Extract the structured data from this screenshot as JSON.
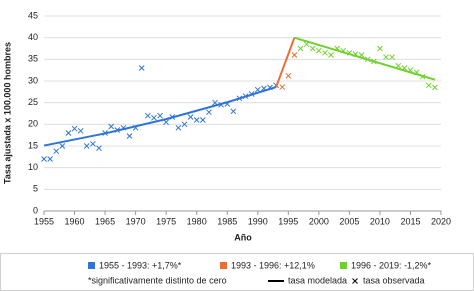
{
  "chart_data": {
    "type": "line",
    "y_label": "Tasa ajustada x 100.000 hombres",
    "x_label": "Año",
    "xlim": [
      1955,
      2020
    ],
    "xticks": [
      1955,
      1960,
      1965,
      1970,
      1975,
      1980,
      1985,
      1990,
      1995,
      2000,
      2005,
      2010,
      2015,
      2020
    ],
    "ylim": [
      0,
      45
    ],
    "yticks": [
      0,
      5,
      10,
      15,
      20,
      25,
      30,
      35,
      40,
      45
    ],
    "grid": true,
    "series": [
      {
        "name": "1955 - 1993: +1,7%*",
        "color": "#2e75d6",
        "x": [
          1955,
          1965,
          1975,
          1985,
          1993
        ],
        "values": [
          15.1,
          17.9,
          21.2,
          25.1,
          28.6
        ],
        "observed_x": [
          1955,
          1956,
          1957,
          1958,
          1959,
          1960,
          1961,
          1962,
          1963,
          1964,
          1965,
          1966,
          1967,
          1968,
          1969,
          1970,
          1971,
          1972,
          1973,
          1974,
          1975,
          1976,
          1977,
          1978,
          1979,
          1980,
          1981,
          1982,
          1983,
          1984,
          1985,
          1986,
          1987,
          1988,
          1989,
          1990,
          1991,
          1992,
          1993
        ],
        "observed_values": [
          12,
          12,
          13.8,
          15,
          18,
          19,
          18.5,
          15,
          15.5,
          14.5,
          18,
          19.5,
          18.7,
          19.2,
          17.3,
          19.2,
          33,
          22,
          21.5,
          22,
          20.5,
          21.7,
          19.2,
          20,
          21.7,
          21,
          21,
          22.8,
          25,
          24.5,
          24.7,
          23,
          26,
          26.5,
          27,
          28,
          28.3,
          28.5,
          29
        ]
      },
      {
        "name": "1993 - 1996: +12,1%",
        "color": "#ed6b35",
        "x": [
          1993,
          1996
        ],
        "values": [
          28.6,
          40
        ],
        "observed_x": [
          1994,
          1995,
          1996
        ],
        "observed_values": [
          28.6,
          31.2,
          36
        ]
      },
      {
        "name": "1996 - 2019: -1,2%*",
        "color": "#6fd12e",
        "x": [
          1996,
          2019
        ],
        "values": [
          40,
          30.3
        ],
        "observed_x": [
          1997,
          1998,
          1999,
          2000,
          2001,
          2002,
          2003,
          2004,
          2005,
          2006,
          2007,
          2008,
          2009,
          2010,
          2011,
          2012,
          2013,
          2014,
          2015,
          2016,
          2017,
          2018,
          2019
        ],
        "observed_values": [
          37.5,
          38.5,
          37.5,
          37,
          36.5,
          36,
          37.5,
          37,
          36.5,
          36.2,
          36,
          35,
          34.5,
          37.5,
          35.5,
          35.5,
          33.5,
          33,
          32.5,
          32,
          31,
          29,
          28.5
        ]
      }
    ],
    "legend": {
      "note": "*significativamente distinto de cero",
      "modeled": "tasa modelada",
      "observed": "tasa observada"
    }
  }
}
